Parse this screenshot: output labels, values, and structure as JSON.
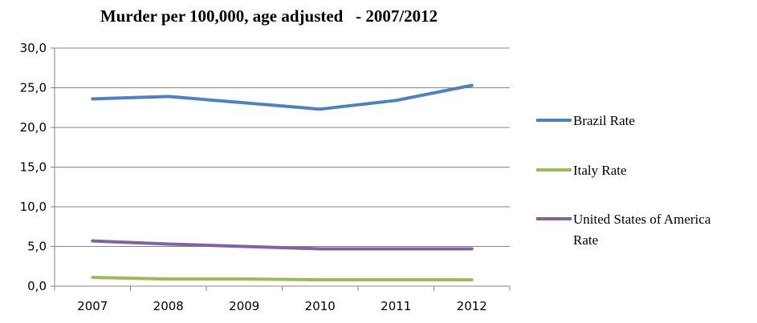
{
  "chart_data": {
    "type": "line",
    "title": "Murder per 100,000, age adjusted   - 2007/2012",
    "xlabel": "",
    "ylabel": "",
    "categories": [
      "2007",
      "2008",
      "2009",
      "2010",
      "2011",
      "2012"
    ],
    "ylim": [
      0,
      30
    ],
    "y_ticks": [
      "0,0",
      "5,0",
      "10,0",
      "15,0",
      "20,0",
      "25,0",
      "30,0"
    ],
    "grid": true,
    "legend_position": "right",
    "series": [
      {
        "name": "Brazil Rate",
        "legend_lines": [
          "Brazil Rate"
        ],
        "color": "#4F81BD",
        "values": [
          23.6,
          23.9,
          23.1,
          22.3,
          23.4,
          25.3
        ]
      },
      {
        "name": "Italy Rate",
        "legend_lines": [
          "Italy Rate"
        ],
        "color": "#9BBB59",
        "values": [
          1.1,
          0.9,
          0.9,
          0.8,
          0.8,
          0.8
        ]
      },
      {
        "name": "United States of America Rate",
        "legend_lines": [
          "United States of America",
          "Rate"
        ],
        "color": "#8064A2",
        "values": [
          5.7,
          5.3,
          5.0,
          4.7,
          4.7,
          4.7
        ]
      }
    ]
  }
}
